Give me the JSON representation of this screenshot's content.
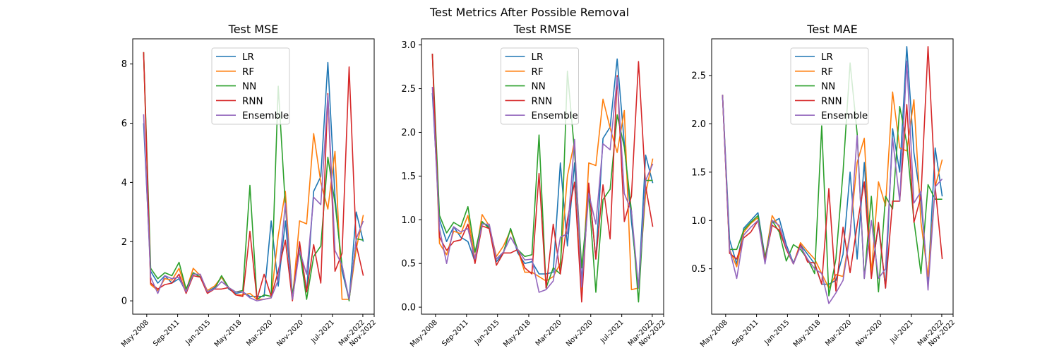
{
  "figure": {
    "title": "Test Metrics After Possible Removal"
  },
  "colors": {
    "LR": "#1f77b4",
    "RF": "#ff7f0e",
    "NN": "#2ca02c",
    "RNN": "#d62728",
    "Ensemble": "#9467bd"
  },
  "chart_data": [
    {
      "type": "line",
      "title": "Test MSE",
      "xlabel": "",
      "ylabel": "",
      "x_tick_labels": [
        "May-2008",
        "Sep-2011",
        "Jan-2015",
        "May-2018",
        "Mar-2020",
        "Nov-2020",
        "Jul-2021",
        "Mar-2022",
        "Nov-2022"
      ],
      "y_ticks": [
        0,
        2,
        4,
        6,
        8
      ],
      "ylim": [
        -0.45,
        8.85
      ],
      "grid": false,
      "legend": "upper center",
      "series": [
        {
          "name": "LR",
          "values": [
            6.0,
            1.0,
            0.6,
            0.85,
            0.6,
            0.75,
            0.3,
            0.95,
            0.8,
            0.3,
            0.45,
            0.8,
            0.4,
            0.25,
            0.3,
            0.15,
            0.15,
            0.15,
            2.7,
            0.5,
            2.7,
            0.1,
            1.9,
            0.3,
            3.7,
            4.2,
            8.05,
            3.5,
            1.0,
            0.05,
            3.0,
            2.0
          ]
        },
        {
          "name": "RF",
          "values": [
            8.4,
            0.55,
            0.35,
            0.75,
            0.7,
            1.1,
            0.35,
            1.1,
            0.85,
            0.35,
            0.5,
            0.8,
            0.45,
            0.2,
            0.2,
            0.25,
            0.05,
            0.05,
            0.1,
            2.2,
            3.7,
            0.05,
            2.7,
            2.6,
            5.65,
            4.0,
            3.1,
            5.05,
            0.05,
            0.05,
            1.75,
            2.9
          ]
        },
        {
          "name": "NN",
          "values": [
            8.4,
            1.1,
            0.75,
            0.95,
            0.85,
            1.3,
            0.4,
            0.95,
            0.8,
            0.3,
            0.4,
            0.85,
            0.45,
            0.3,
            0.35,
            3.9,
            0.05,
            0.2,
            0.15,
            7.25,
            3.2,
            0.2,
            1.7,
            0.05,
            1.5,
            1.85,
            4.85,
            3.3,
            1.2,
            0.0,
            2.1,
            2.05
          ]
        },
        {
          "name": "RNN",
          "values": [
            8.4,
            0.6,
            0.4,
            0.55,
            0.6,
            0.9,
            0.25,
            0.85,
            0.8,
            0.25,
            0.4,
            0.4,
            0.45,
            0.2,
            0.15,
            2.35,
            0.05,
            0.9,
            0.15,
            1.0,
            2.05,
            0.0,
            2.0,
            0.3,
            1.9,
            0.6,
            7.0,
            1.0,
            1.6,
            7.9,
            1.9,
            0.85
          ]
        },
        {
          "name": "Ensemble",
          "values": [
            6.3,
            0.8,
            0.25,
            0.85,
            0.75,
            0.8,
            0.3,
            0.9,
            0.9,
            0.3,
            0.4,
            0.65,
            0.45,
            0.3,
            0.3,
            0.1,
            0.0,
            0.05,
            0.1,
            0.7,
            3.3,
            0.05,
            1.7,
            0.9,
            3.5,
            3.25,
            6.95,
            1.7,
            1.2,
            0.05,
            2.1,
            2.7
          ]
        }
      ]
    },
    {
      "type": "line",
      "title": "Test RMSE",
      "xlabel": "",
      "ylabel": "",
      "x_tick_labels": [
        "May-2008",
        "Sep-2011",
        "Jan-2015",
        "May-2018",
        "Mar-2020",
        "Nov-2020",
        "Jul-2021",
        "Mar-2022",
        "Nov-2022"
      ],
      "y_ticks": [
        0.0,
        0.5,
        1.0,
        1.5,
        2.0,
        2.5,
        3.0
      ],
      "ylim": [
        -0.08,
        3.07
      ],
      "grid": false,
      "legend": "upper center",
      "series": [
        {
          "name": "LR",
          "values": [
            2.45,
            1.0,
            0.75,
            0.92,
            0.8,
            0.75,
            0.52,
            0.97,
            0.92,
            0.52,
            0.62,
            0.9,
            0.62,
            0.5,
            0.52,
            0.38,
            0.38,
            0.4,
            1.65,
            0.7,
            1.65,
            0.3,
            1.4,
            0.55,
            1.93,
            2.06,
            2.84,
            1.87,
            0.98,
            0.22,
            1.74,
            1.42
          ]
        },
        {
          "name": "RF",
          "values": [
            2.9,
            0.73,
            0.6,
            0.87,
            0.84,
            1.05,
            0.55,
            1.06,
            0.93,
            0.58,
            0.7,
            0.88,
            0.66,
            0.4,
            0.4,
            0.35,
            0.3,
            0.35,
            0.5,
            1.5,
            1.9,
            0.12,
            1.65,
            1.62,
            2.38,
            2.05,
            1.77,
            2.25,
            0.2,
            0.22,
            1.3,
            1.7
          ]
        },
        {
          "name": "NN",
          "values": [
            2.9,
            1.05,
            0.85,
            0.97,
            0.92,
            1.15,
            0.63,
            0.98,
            0.9,
            0.55,
            0.63,
            0.9,
            0.66,
            0.58,
            0.6,
            1.97,
            0.22,
            0.45,
            0.38,
            2.7,
            1.78,
            0.45,
            1.3,
            0.17,
            1.23,
            1.35,
            2.2,
            1.83,
            1.1,
            0.06,
            1.45,
            1.45
          ]
        },
        {
          "name": "RNN",
          "values": [
            2.9,
            0.8,
            0.65,
            0.75,
            0.77,
            0.95,
            0.5,
            0.93,
            0.9,
            0.48,
            0.62,
            0.62,
            0.66,
            0.45,
            0.38,
            1.53,
            0.22,
            0.95,
            0.38,
            1.0,
            1.43,
            0.06,
            1.42,
            0.55,
            1.4,
            0.78,
            2.65,
            0.98,
            1.27,
            2.81,
            1.38,
            0.92
          ]
        },
        {
          "name": "Ensemble",
          "values": [
            2.52,
            0.9,
            0.5,
            0.92,
            0.86,
            0.9,
            0.55,
            0.95,
            0.95,
            0.55,
            0.63,
            0.8,
            0.66,
            0.54,
            0.55,
            0.17,
            0.2,
            0.3,
            0.8,
            0.84,
            1.92,
            0.23,
            1.3,
            0.95,
            1.87,
            1.8,
            2.63,
            1.3,
            1.1,
            0.22,
            1.45,
            1.64
          ]
        }
      ]
    },
    {
      "type": "line",
      "title": "Test MAE",
      "xlabel": "",
      "ylabel": "",
      "x_tick_labels": [
        "May-2008",
        "Sep-2011",
        "Jan-2015",
        "May-2018",
        "Mar-2020",
        "Nov-2020",
        "Jul-2021",
        "Mar-2022",
        "Nov-2022"
      ],
      "y_ticks": [
        0.5,
        1.0,
        1.5,
        2.0,
        2.5
      ],
      "ylim": [
        0.03,
        2.88
      ],
      "grid": false,
      "legend": "upper center",
      "series": [
        {
          "name": "LR",
          "values": [
            2.3,
            0.8,
            0.55,
            0.92,
            1.0,
            1.08,
            0.62,
            0.98,
            1.02,
            0.75,
            0.56,
            0.75,
            0.65,
            0.55,
            0.34,
            0.34,
            0.38,
            0.65,
            1.5,
            0.6,
            1.6,
            0.45,
            0.95,
            0.3,
            1.95,
            1.5,
            2.8,
            1.7,
            1.2,
            0.35,
            1.75,
            1.25
          ]
        },
        {
          "name": "RF",
          "values": [
            2.3,
            0.7,
            0.52,
            0.88,
            0.97,
            1.03,
            0.6,
            1.05,
            0.93,
            0.72,
            0.55,
            0.77,
            0.68,
            0.6,
            0.45,
            0.3,
            0.44,
            0.42,
            0.88,
            1.6,
            1.85,
            0.45,
            1.4,
            1.15,
            2.33,
            1.75,
            1.72,
            2.25,
            0.98,
            0.42,
            1.35,
            1.63
          ]
        },
        {
          "name": "NN",
          "values": [
            2.3,
            0.7,
            0.7,
            0.9,
            0.98,
            1.05,
            0.6,
            1.0,
            0.88,
            0.58,
            0.75,
            0.7,
            0.6,
            0.45,
            1.98,
            0.22,
            0.6,
            1.5,
            2.63,
            1.9,
            0.4,
            1.25,
            0.26,
            1.25,
            1.12,
            2.18,
            1.8,
            1.0,
            0.45,
            1.37,
            1.22,
            1.22
          ]
        },
        {
          "name": "RNN",
          "values": [
            2.3,
            0.66,
            0.6,
            0.82,
            0.88,
            1.0,
            0.58,
            0.95,
            0.9,
            0.7,
            0.55,
            0.75,
            0.57,
            0.56,
            0.34,
            1.33,
            0.27,
            0.93,
            0.46,
            0.95,
            1.4,
            0.4,
            0.98,
            0.3,
            1.2,
            1.2,
            2.2,
            0.98,
            1.25,
            2.8,
            1.35,
            0.6
          ]
        },
        {
          "name": "Ensemble",
          "values": [
            2.3,
            0.7,
            0.4,
            0.85,
            0.93,
            1.0,
            0.55,
            1.0,
            0.95,
            0.72,
            0.55,
            0.73,
            0.6,
            0.5,
            0.45,
            0.14,
            0.25,
            0.38,
            0.85,
            1.88,
            0.4,
            1.0,
            0.4,
            0.5,
            1.85,
            1.2,
            2.65,
            1.18,
            1.3,
            0.28,
            1.35,
            1.43
          ]
        }
      ]
    }
  ]
}
